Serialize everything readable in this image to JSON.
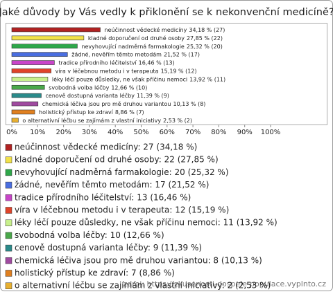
{
  "chart_data": {
    "type": "bar",
    "orientation": "horizontal",
    "title": "Jaké důvody by Vás vedly k přiklonění se k nekonvenční medicíně?",
    "categories": [
      "neúčinnost vědecké medicíny",
      "kladné doporučení od druhé osoby",
      "nevyhovující nadměrná farmakologie",
      "žádné, nevěřím těmto metodám",
      "tradice přírodního léčitelství",
      "víra v léčebnou metodu i v terapeuta",
      "léky léčí pouze důsledky, ne však příčinu nemoci",
      "svobodná volba léčby",
      "cenově dostupná varianta léčby",
      "chemická léčiva jsou pro mě druhou variantou",
      "holistický přístup ke zdraví",
      "o alternativní léčbu se zajímám z vlastní iniciativy"
    ],
    "values": [
      34.18,
      27.85,
      25.32,
      21.52,
      16.46,
      15.19,
      13.92,
      12.66,
      11.39,
      10.13,
      8.86,
      2.53
    ],
    "value_labels": [
      "34,18 % (27)",
      "27,85 % (22)",
      "25,32 % (20)",
      "21,52 % (17)",
      "16,46 % (13)",
      "15,19 % (12)",
      "13,92 % (11)",
      "12,66 % (10)",
      "11,39 % (9)",
      "10,13 % (8)",
      "8,86 % (7)",
      "2,53 % (2)"
    ],
    "legend_labels": [
      "neúčinnost vědecké medicíny: 27 (34,18 %)",
      "kladné doporučení od druhé osoby: 22 (27,85 %)",
      "nevyhovující nadměrná farmakologie: 20 (25,32 %)",
      "žádné, nevěřím těmto metodám: 17 (21,52 %)",
      "tradice přírodního léčitelství: 13 (16,46 %)",
      "víra v léčebnou metodu i v terapeuta: 12 (15,19 %)",
      "léky léčí pouze důsledky, ne však příčinu nemoci: 11 (13,92 %)",
      "svobodná volba léčby: 10 (12,66 %)",
      "cenově dostupná varianta léčby: 9 (11,39 %)",
      "chemická léčiva jsou pro mě druhou variantou: 8 (10,13 %)",
      "holistický přístup ke zdraví: 7 (8,86 %)",
      "o alternativní léčbu se zajímám z vlastní iniciativy: 2 (2,53 %)"
    ],
    "colors": [
      "#b22222",
      "#f2e24a",
      "#2ea84a",
      "#4a6ee0",
      "#c845c8",
      "#e0442a",
      "#c8f08c",
      "#4aa84a",
      "#2a8a8a",
      "#a04aa0",
      "#e08020",
      "#e8b030"
    ],
    "xlim": [
      0,
      100
    ],
    "xticks": [
      {
        "value": 0,
        "label": "0%"
      },
      {
        "value": 10,
        "label": "10%"
      },
      {
        "value": 20,
        "label": "20%"
      },
      {
        "value": 30,
        "label": "30%"
      },
      {
        "value": 40,
        "label": "40%"
      },
      {
        "value": 50,
        "label": "50%"
      },
      {
        "value": 60,
        "label": "60%"
      },
      {
        "value": 70,
        "label": "70%"
      },
      {
        "value": 80,
        "label": "80%"
      },
      {
        "value": 90,
        "label": "90%"
      },
      {
        "value": 100,
        "label": "100%"
      }
    ],
    "source": "zdroj: https://zkusenosti-dospele-populace.vyplnto.cz"
  }
}
